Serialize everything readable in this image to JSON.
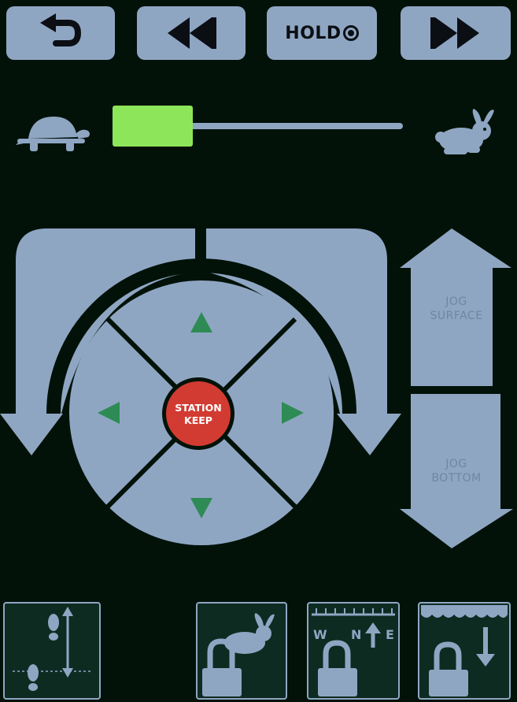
{
  "toolbar": {
    "back_icon": "undo-arrow-icon",
    "rewind_icon": "rewind-icon",
    "hold_label": "HOLD",
    "hold_icon": "record-dot-icon",
    "forward_icon": "fast-forward-icon"
  },
  "speed": {
    "slow_icon": "turtle-icon",
    "fast_icon": "rabbit-icon",
    "level": 0.12,
    "thumb_color": "#8de65a"
  },
  "control": {
    "station_keep_line1": "STATION",
    "station_keep_line2": "KEEP",
    "station_keep_color": "#d23b32",
    "arrow_color": "#2e8b55"
  },
  "jog": {
    "surface_line1": "JOG",
    "surface_line2": "SURFACE",
    "bottom_line1": "JOG",
    "bottom_line2": "BOTTOM"
  },
  "bottom": {
    "compass_w": "W",
    "compass_n": "N",
    "compass_e": "E"
  },
  "colors": {
    "background": "#021209",
    "panel": "#8fa6c3"
  }
}
